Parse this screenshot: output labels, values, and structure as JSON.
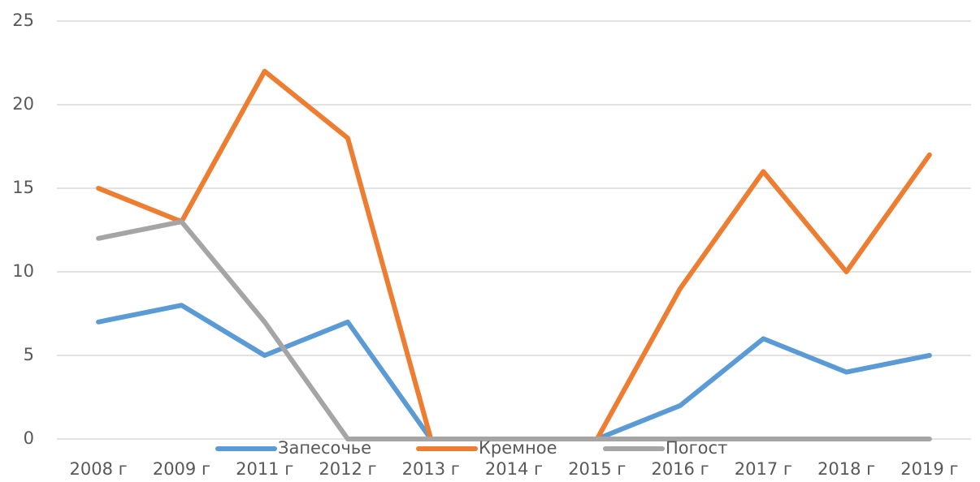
{
  "chart_data": {
    "type": "line",
    "categories": [
      "2008 г",
      "2009 г",
      "2011 г",
      "2012 г",
      "2013 г",
      "2014 г",
      "2015 г",
      "2016 г",
      "2017 г",
      "2018 г",
      "2019 г"
    ],
    "series": [
      {
        "name": "Запесочье",
        "color": "#5b9bd5",
        "values": [
          7,
          8,
          5,
          7,
          0,
          0,
          0,
          2,
          6,
          4,
          5
        ]
      },
      {
        "name": "Кремное",
        "color": "#ed7d31",
        "values": [
          15,
          13,
          22,
          18,
          0,
          0,
          0,
          9,
          16,
          10,
          17
        ]
      },
      {
        "name": "Погост",
        "color": "#a5a5a5",
        "values": [
          12,
          13,
          7,
          0,
          0,
          0,
          0,
          0,
          0,
          0,
          0
        ]
      }
    ],
    "ylim": [
      0,
      25
    ],
    "yticks": [
      0,
      5,
      10,
      15,
      20,
      25
    ],
    "grid": true,
    "legend": "bottom"
  }
}
